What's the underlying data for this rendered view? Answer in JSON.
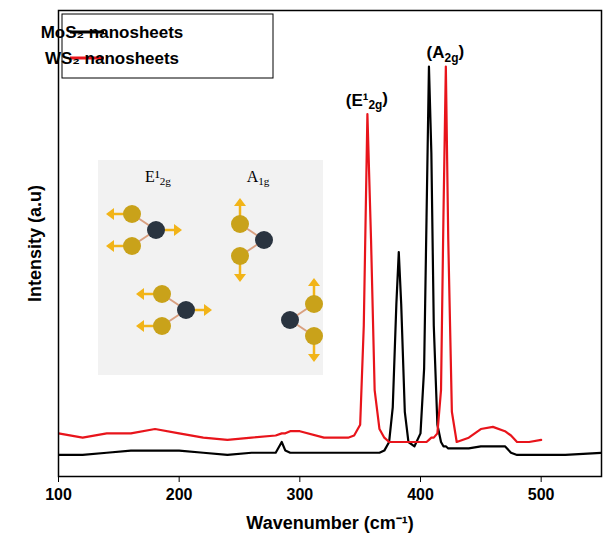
{
  "chart_data": {
    "type": "line",
    "x_label": "Wavenumber (cm⁻¹)",
    "y_label": "Intensity (a.u)",
    "x": [
      100,
      120,
      140,
      160,
      180,
      200,
      220,
      240,
      260,
      280,
      285,
      288,
      292,
      300,
      320,
      340,
      345,
      350,
      353,
      356,
      359,
      362,
      366,
      370,
      374,
      377,
      380,
      382,
      384,
      387,
      390,
      395,
      400,
      403,
      405,
      407,
      409,
      411,
      414,
      417,
      419,
      421,
      423,
      426,
      430,
      440,
      450,
      460,
      470,
      475,
      480,
      490,
      500,
      520,
      550
    ],
    "series": [
      {
        "name": "MoS₂ nanosheets",
        "color": "#000000",
        "values": [
          5,
          5,
          5.5,
          6,
          6,
          6,
          5.5,
          5,
          5.5,
          5.5,
          8,
          6,
          5.5,
          5.5,
          5.5,
          5.5,
          5.5,
          5.5,
          5.5,
          5.5,
          5.5,
          5.5,
          5.5,
          6,
          8,
          16,
          40,
          52,
          40,
          15,
          8,
          7,
          10,
          25,
          60,
          95,
          75,
          35,
          12,
          8,
          7,
          7,
          6.5,
          6.5,
          6.5,
          6.5,
          7,
          7,
          7,
          5.5,
          5,
          5,
          5,
          5,
          5.5
        ]
      },
      {
        "name": "WS₂ nanosheets",
        "color": "#e8141b",
        "values": [
          10,
          9,
          10,
          10,
          11,
          10,
          9,
          8.5,
          9,
          9.5,
          10,
          10,
          10.5,
          10.5,
          9,
          9,
          9.5,
          12,
          35,
          84,
          55,
          20,
          11,
          9,
          8,
          8,
          8,
          8,
          8,
          8,
          8,
          8,
          8,
          8,
          8,
          8.5,
          9,
          9,
          10,
          20,
          60,
          95,
          55,
          15,
          8,
          9,
          11,
          11.5,
          10.5,
          9.5,
          8,
          8,
          8.5,
          null,
          null
        ]
      }
    ],
    "annotations": [
      "(E¹2g)",
      "(A2g)"
    ],
    "inset_labels": [
      "E¹2g",
      "A1g"
    ],
    "xlim": [
      100,
      550
    ],
    "xticks": [
      100,
      200,
      300,
      400,
      500
    ],
    "ylim": [
      0,
      108
    ],
    "yticks": [],
    "tick_labels": "x",
    "grid": false,
    "legend": "upper left"
  }
}
